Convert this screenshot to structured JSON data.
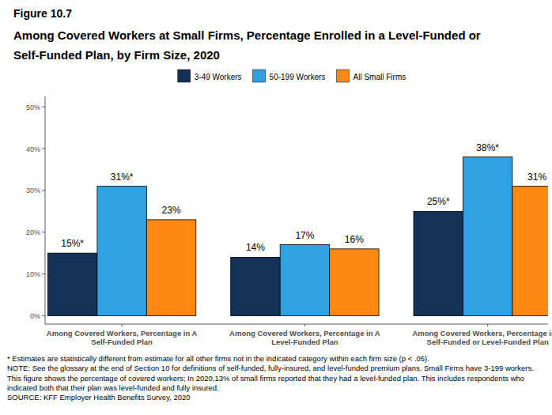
{
  "chart_data": {
    "type": "bar",
    "figure_label": "Figure 10.7",
    "title": "Among Covered Workers at Small Firms, Percentage Enrolled in a Level-Funded or Self-Funded Plan, by Firm Size, 2020",
    "categories": [
      "Among Covered Workers, Percentage in A Self-Funded Plan",
      "Among Covered Workers, Percentage in A Level-Funded Plan",
      "Among Covered Workers, Percentage in A Self-Funded or Level-Funded Plan"
    ],
    "series": [
      {
        "name": "3-49 Workers",
        "color": "#143257",
        "values": [
          15,
          14,
          25
        ],
        "value_labels": [
          "15%*",
          "14%",
          "25%*"
        ]
      },
      {
        "name": "50-199 Workers",
        "color": "#30a2e2",
        "values": [
          31,
          17,
          38
        ],
        "value_labels": [
          "31%*",
          "17%",
          "38%*"
        ]
      },
      {
        "name": "All Small Firms",
        "color": "#ff8714",
        "values": [
          23,
          16,
          31
        ],
        "value_labels": [
          "23%",
          "16%",
          "31%"
        ]
      }
    ],
    "ylim": [
      -2,
      52.5
    ],
    "yticks": [
      {
        "value": 0,
        "label": "0%"
      },
      {
        "value": 10,
        "label": "10%"
      },
      {
        "value": 20,
        "label": "20%"
      },
      {
        "value": 30,
        "label": "30%"
      },
      {
        "value": 40,
        "label": "40%"
      },
      {
        "value": 50,
        "label": "50%"
      }
    ],
    "grid": false,
    "legend": "top",
    "data_labels": true,
    "notes": [
      "* Estimates are statistically different from estimate for all other firms not in the indicated category within each firm size (p < .05).",
      "NOTE: See the glossary at the end of Section 10 for definitions of self-funded, fully-insured, and level-funded premium plans. Small Firms have 3-199 workers. This figure shows the percentage of covered workers; In 2020,13% of small firms reported that they had a level-funded plan. This includes respondents who indicated both that their plan was level-funded and fully insured.",
      "SOURCE: KFF Employer Health Benefits Survey, 2020"
    ]
  }
}
